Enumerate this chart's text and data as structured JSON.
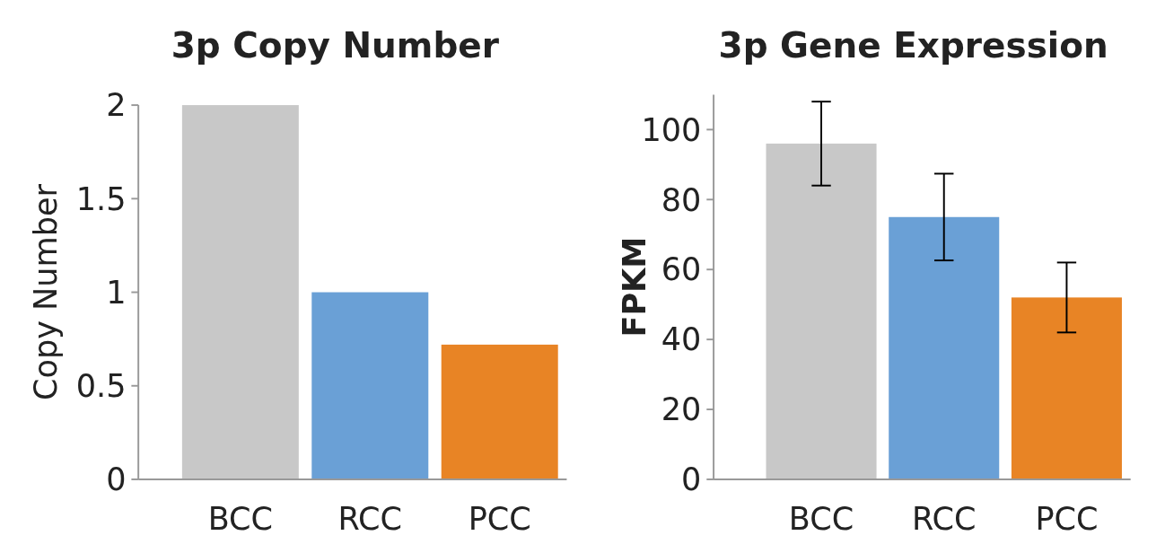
{
  "chart_data": [
    {
      "type": "bar",
      "title": "3p Copy Number",
      "ylabel": "Copy Number",
      "categories": [
        "BCC",
        "RCC",
        "PCC"
      ],
      "values": [
        2,
        1.0,
        0.72
      ],
      "colors": [
        "#c8c8c8",
        "#6aa0d6",
        "#e88425"
      ],
      "ylim": [
        0,
        2
      ],
      "yticks": [
        0,
        0.5,
        1,
        1.5,
        2
      ],
      "grid": false
    },
    {
      "type": "bar",
      "title": "3p Gene Expression",
      "ylabel": "FPKM",
      "categories": [
        "BCC",
        "RCC",
        "PCC"
      ],
      "values": [
        96,
        75,
        52
      ],
      "errors": [
        12,
        12.4,
        10
      ],
      "colors": [
        "#c8c8c8",
        "#6aa0d6",
        "#e88425"
      ],
      "ylim": [
        0,
        110
      ],
      "yticks": [
        0,
        20,
        40,
        60,
        80,
        100
      ],
      "grid": false
    }
  ]
}
